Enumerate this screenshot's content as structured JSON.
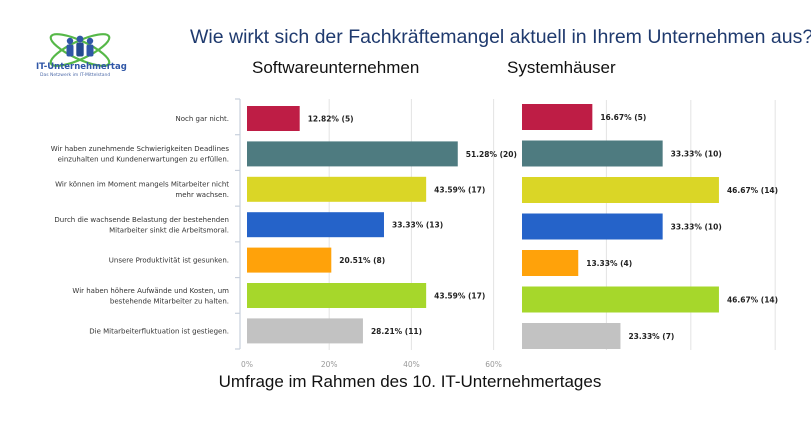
{
  "logo": {
    "name": "IT-Unternehmertag",
    "tagline": "Das Netzwerk im IT-Mittelstand"
  },
  "title": "Wie wirkt sich der Fachkräftemangel aktuell in Ihrem Unternehmen aus?",
  "footer": "Umfrage im Rahmen des 10. IT-Unternehmertages",
  "colors": [
    "#be1d45",
    "#4e7b80",
    "#dad626",
    "#2563c9",
    "#ffa20a",
    "#a6d72b",
    "#c2c2c2"
  ],
  "chart_data": [
    {
      "type": "bar",
      "orientation": "horizontal",
      "title": "Softwareunternehmen",
      "categories": [
        "Noch gar nicht.",
        "Wir haben zunehmende Schwierigkeiten Deadlines einzuhalten und Kundenerwartungen zu erfüllen.",
        "Wir können im Moment mangels Mitarbeiter nicht mehr wachsen.",
        "Durch die wachsende Belastung der bestehenden Mitarbeiter sinkt die Arbeitsmoral.",
        "Unsere Produktivität ist gesunken.",
        "Wir haben höhere Aufwände und Kosten, um bestehende Mitarbeiter zu halten.",
        "Die Mitarbeiterfluktuation ist gestiegen."
      ],
      "category_lines": [
        [
          "Noch gar nicht."
        ],
        [
          "Wir haben zunehmende Schwierigkeiten Deadlines",
          "einzuhalten und Kundenerwartungen zu erfüllen."
        ],
        [
          "Wir können im Moment mangels Mitarbeiter nicht",
          "mehr wachsen."
        ],
        [
          "Durch die wachsende Belastung der bestehenden",
          "Mitarbeiter sinkt die Arbeitsmoral."
        ],
        [
          "Unsere Produktivität ist gesunken."
        ],
        [
          "Wir haben höhere Aufwände und Kosten, um",
          "bestehende Mitarbeiter zu halten."
        ],
        [
          "Die Mitarbeiterfluktuation ist gestiegen."
        ]
      ],
      "values": [
        12.82,
        51.28,
        43.59,
        33.33,
        20.51,
        43.59,
        28.21
      ],
      "counts": [
        5,
        20,
        17,
        13,
        8,
        17,
        11
      ],
      "data_labels": [
        "12.82% (5)",
        "51.28% (20)",
        "43.59% (17)",
        "33.33% (13)",
        "20.51% (8)",
        "43.59% (17)",
        "28.21% (11)"
      ],
      "xlim": [
        0,
        60
      ],
      "xticks": [
        0,
        20,
        40,
        60
      ],
      "xtick_labels": [
        "0%",
        "20%",
        "40%",
        "60%"
      ],
      "grid": true
    },
    {
      "type": "bar",
      "orientation": "horizontal",
      "title": "Systemhäuser",
      "values": [
        16.67,
        33.33,
        46.67,
        33.33,
        13.33,
        46.67,
        23.33
      ],
      "counts": [
        5,
        10,
        14,
        10,
        4,
        14,
        7
      ],
      "data_labels": [
        "16.67% (5)",
        "33.33% (10)",
        "46.67% (14)",
        "33.33% (10)",
        "13.33% (4)",
        "46.67% (14)",
        "23.33% (7)"
      ],
      "xlim": [
        0,
        60
      ],
      "xticks": [
        0,
        20,
        40,
        60
      ],
      "grid": true
    }
  ]
}
